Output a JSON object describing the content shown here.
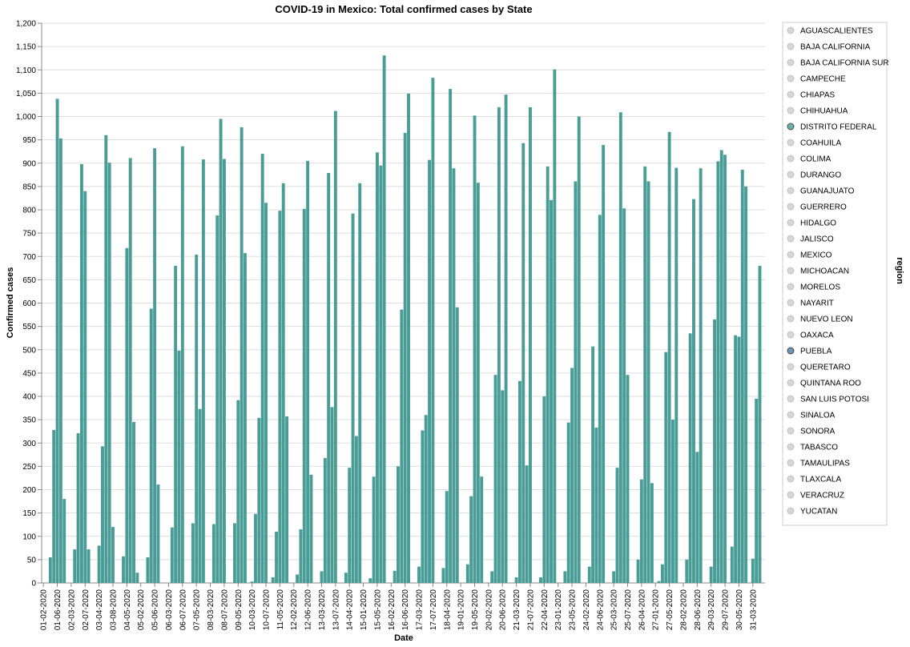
{
  "chart_data": {
    "type": "bar",
    "title": "COVID-19 in Mexico: Total confirmed cases by State",
    "x_label": "Date",
    "y_label": "Confirmed cases",
    "color": "#4a9d96",
    "categories": [
      "01-02-2020",
      null,
      null,
      null,
      "01-06-2020",
      null,
      null,
      null,
      "02-03-2020",
      null,
      null,
      null,
      "02-07-2020",
      null,
      null,
      null,
      "03-04-2020",
      null,
      null,
      null,
      "03-08-2020",
      null,
      null,
      null,
      "04-05-2020",
      null,
      null,
      null,
      "05-02-2020",
      null,
      null,
      null,
      "05-06-2020",
      null,
      null,
      null,
      "06-03-2020",
      null,
      null,
      null,
      "06-07-2020",
      null,
      null,
      null,
      "07-05-2020",
      null,
      null,
      null,
      "08-03-2020",
      null,
      null,
      null,
      "08-07-2020",
      null,
      null,
      null,
      "09-05-2020",
      null,
      null,
      null,
      "10-03-2020",
      null,
      null,
      null,
      "10-07-2020",
      null,
      null,
      null,
      "11-05-2020",
      null,
      null,
      null,
      "12-02-2020",
      null,
      null,
      null,
      "12-06-2020",
      null,
      null,
      null,
      "13-03-2020",
      null,
      null,
      null,
      "13-07-2020",
      null,
      null,
      null,
      "14-04-2020",
      null,
      null,
      null,
      "15-01-2020",
      null,
      null,
      null,
      "15-05-2020",
      null,
      null,
      null,
      "16-02-2020",
      null,
      null,
      null,
      "16-06-2020",
      null,
      null,
      null,
      "17-03-2020",
      null,
      null,
      null,
      "17-07-2020",
      null,
      null,
      null,
      "18-04-2020",
      null,
      null,
      null,
      "19-01-2020",
      null,
      null,
      null,
      "19-05-2020",
      null,
      null,
      null,
      "20-02-2020",
      null,
      null,
      null,
      "20-06-2020",
      null,
      null,
      null,
      "21-03-2020",
      null,
      null,
      null,
      "21-07-2020",
      null,
      null,
      null,
      "22-04-2020",
      null,
      null,
      null,
      "23-01-2020",
      null,
      null,
      null,
      "23-05-2020",
      null,
      null,
      null,
      "24-02-2020",
      null,
      null,
      null,
      "24-06-2020",
      null,
      null,
      null,
      "25-03-2020",
      null,
      null,
      null,
      "25-07-2020",
      null,
      null,
      null,
      "26-04-2020",
      null,
      null,
      null,
      "27-01-2020",
      null,
      null,
      null,
      "27-05-2020",
      null,
      null,
      null,
      "28-02-2020",
      null,
      null,
      null,
      "28-06-2020",
      null,
      null,
      null,
      "29-03-2020",
      null,
      null,
      null,
      "29-07-2020",
      null,
      null,
      null,
      "30-05-2020",
      null,
      null,
      null,
      "31-03-2020",
      null,
      null,
      null
    ],
    "values": [
      null,
      null,
      55,
      328,
      1038,
      953,
      180,
      null,
      null,
      72,
      321,
      898,
      840,
      72,
      null,
      null,
      80,
      293,
      960,
      901,
      120,
      null,
      null,
      57,
      718,
      911,
      345,
      22,
      null,
      null,
      55,
      588,
      932,
      211,
      null,
      null,
      null,
      119,
      680,
      498,
      936,
      null,
      null,
      128,
      704,
      373,
      908,
      null,
      null,
      126,
      788,
      995,
      909,
      null,
      null,
      128,
      392,
      977,
      707,
      null,
      3,
      148,
      354,
      920,
      815,
      null,
      12,
      110,
      798,
      857,
      357,
      null,
      null,
      18,
      115,
      802,
      905,
      232,
      null,
      null,
      25,
      268,
      879,
      377,
      1012,
      null,
      null,
      22,
      247,
      792,
      315,
      857,
      null,
      null,
      10,
      228,
      923,
      895,
      1131,
      null,
      null,
      26,
      250,
      586,
      965,
      1049,
      null,
      null,
      35,
      327,
      360,
      907,
      1083,
      null,
      null,
      32,
      197,
      1059,
      889,
      591,
      null,
      null,
      40,
      186,
      1002,
      858,
      228,
      null,
      null,
      25,
      446,
      1020,
      413,
      1047,
      null,
      null,
      12,
      433,
      943,
      252,
      1020,
      null,
      null,
      12,
      400,
      893,
      821,
      1101,
      null,
      null,
      25,
      344,
      461,
      861,
      1000,
      null,
      null,
      35,
      507,
      333,
      789,
      939,
      null,
      null,
      25,
      247,
      1009,
      803,
      446,
      null,
      null,
      50,
      222,
      893,
      861,
      214,
      null,
      4,
      40,
      495,
      967,
      350,
      890,
      null,
      null,
      50,
      535,
      823,
      281,
      889,
      null,
      null,
      35,
      565,
      904,
      928,
      918,
      null,
      78,
      531,
      528,
      886,
      850,
      null,
      52,
      395,
      680,
      null
    ],
    "ylim": [
      0,
      1200
    ],
    "yticks": [
      0,
      50,
      100,
      150,
      200,
      250,
      300,
      350,
      400,
      450,
      500,
      550,
      600,
      650,
      700,
      750,
      800,
      850,
      900,
      950,
      {
        "value": 1000,
        "label": "1,000"
      },
      {
        "value": 1050,
        "label": "1,050"
      },
      {
        "value": 1100,
        "label": "1,100"
      },
      {
        "value": 1150,
        "label": "1,150"
      },
      {
        "value": 1200,
        "label": "1,200"
      }
    ],
    "grid": true,
    "legend": {
      "title": "region",
      "position": "right",
      "items": [
        {
          "name": "AGUASCALIENTES",
          "color": "#cccccc"
        },
        {
          "name": "BAJA CALIFORNIA",
          "color": "#cccccc"
        },
        {
          "name": "BAJA CALIFORNIA SUR",
          "color": "#cccccc"
        },
        {
          "name": "CAMPECHE",
          "color": "#cccccc"
        },
        {
          "name": "CHIAPAS",
          "color": "#cccccc"
        },
        {
          "name": "CHIHUAHUA",
          "color": "#cccccc"
        },
        {
          "name": "DISTRITO FEDERAL",
          "color": "#4a9d96"
        },
        {
          "name": "COAHUILA",
          "color": "#cccccc"
        },
        {
          "name": "COLIMA",
          "color": "#cccccc"
        },
        {
          "name": "DURANGO",
          "color": "#cccccc"
        },
        {
          "name": "GUANAJUATO",
          "color": "#cccccc"
        },
        {
          "name": "GUERRERO",
          "color": "#cccccc"
        },
        {
          "name": "HIDALGO",
          "color": "#cccccc"
        },
        {
          "name": "JALISCO",
          "color": "#cccccc"
        },
        {
          "name": "MEXICO",
          "color": "#cccccc"
        },
        {
          "name": "MICHOACAN",
          "color": "#cccccc"
        },
        {
          "name": "MORELOS",
          "color": "#cccccc"
        },
        {
          "name": "NAYARIT",
          "color": "#cccccc"
        },
        {
          "name": "NUEVO LEON",
          "color": "#cccccc"
        },
        {
          "name": "OAXACA",
          "color": "#cccccc"
        },
        {
          "name": "PUEBLA",
          "color": "#4c78a8"
        },
        {
          "name": "QUERETARO",
          "color": "#cccccc"
        },
        {
          "name": "QUINTANA ROO",
          "color": "#cccccc"
        },
        {
          "name": "SAN LUIS POTOSI",
          "color": "#cccccc"
        },
        {
          "name": "SINALOA",
          "color": "#cccccc"
        },
        {
          "name": "SONORA",
          "color": "#cccccc"
        },
        {
          "name": "TABASCO",
          "color": "#cccccc"
        },
        {
          "name": "TAMAULIPAS",
          "color": "#cccccc"
        },
        {
          "name": "TLAXCALA",
          "color": "#cccccc"
        },
        {
          "name": "VERACRUZ",
          "color": "#cccccc"
        },
        {
          "name": "YUCATAN",
          "color": "#cccccc"
        }
      ]
    }
  }
}
